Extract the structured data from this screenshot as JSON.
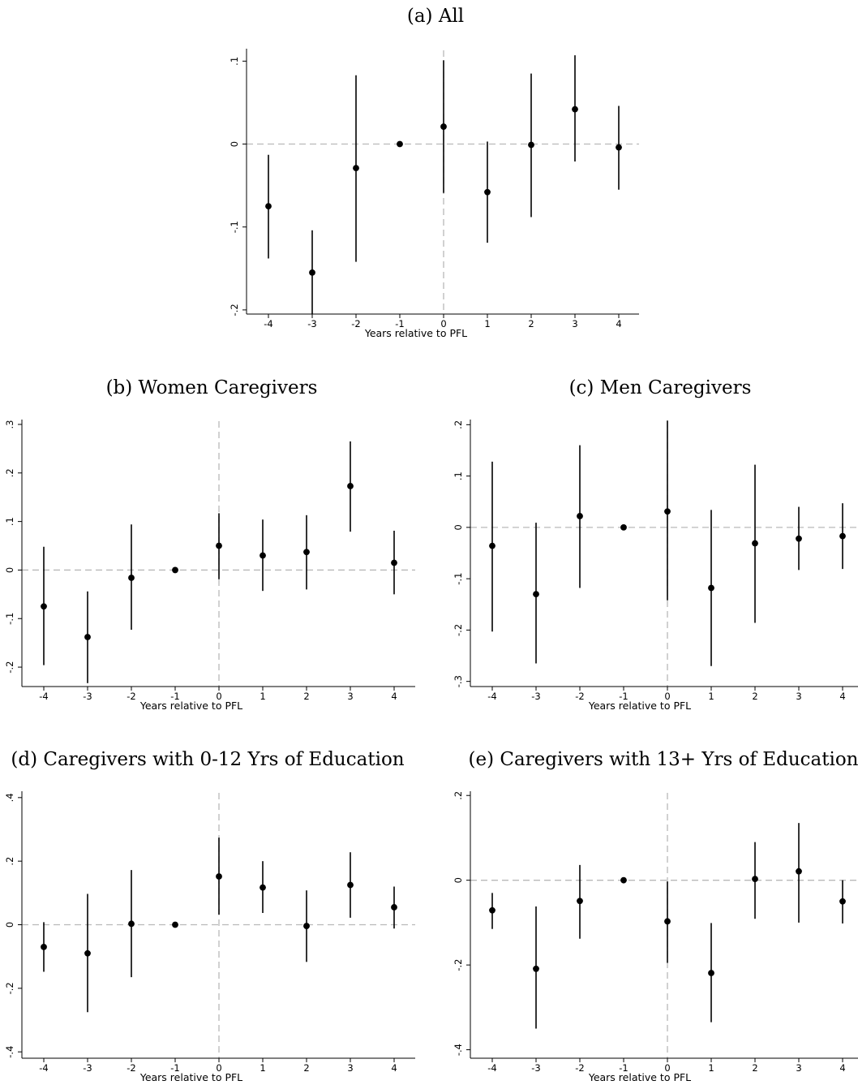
{
  "chart_data": [
    {
      "id": "a",
      "type": "scatter",
      "title": "(a) All",
      "xlabel": "Years relative to PFL",
      "ylabel": "",
      "x": [
        -4,
        -3,
        -2,
        -1,
        0,
        1,
        2,
        3,
        4
      ],
      "xticks": [
        -4,
        -3,
        -2,
        -1,
        0,
        1,
        2,
        3,
        4
      ],
      "xtick_labels": [
        "-4",
        "-3",
        "-2",
        "-1",
        "0",
        "1",
        "2",
        "3",
        "4"
      ],
      "yticks": [
        -0.2,
        -0.1,
        0,
        0.1
      ],
      "ytick_labels": [
        "-.2",
        "-.1",
        "0",
        ".1"
      ],
      "ylim": [
        -0.205,
        0.115
      ],
      "y": [
        -0.075,
        -0.155,
        -0.029,
        0,
        0.021,
        -0.058,
        -0.001,
        0.042,
        -0.004
      ],
      "ci_low": [
        -0.138,
        -0.205,
        -0.142,
        0,
        -0.059,
        -0.119,
        -0.088,
        -0.021,
        -0.055
      ],
      "ci_high": [
        -0.013,
        -0.104,
        0.083,
        0,
        0.101,
        0.003,
        0.085,
        0.107,
        0.046
      ],
      "ref_lines": {
        "y": 0,
        "x": 0
      },
      "grid": false,
      "legend": "none"
    },
    {
      "id": "b",
      "type": "scatter",
      "title": "(b) Women Caregivers",
      "xlabel": "Years relative to PFL",
      "ylabel": "",
      "x": [
        -4,
        -3,
        -2,
        -1,
        0,
        1,
        2,
        3,
        4
      ],
      "xticks": [
        -4,
        -3,
        -2,
        -1,
        0,
        1,
        2,
        3,
        4
      ],
      "xtick_labels": [
        "-4",
        "-3",
        "-2",
        "-1",
        "0",
        "1",
        "2",
        "3",
        "4"
      ],
      "yticks": [
        -0.2,
        -0.1,
        0,
        0.1,
        0.2,
        0.3
      ],
      "ytick_labels": [
        "-.2",
        "-.1",
        "0",
        ".1",
        ".2",
        ".3"
      ],
      "ylim": [
        -0.24,
        0.31
      ],
      "y": [
        -0.075,
        -0.138,
        -0.016,
        0,
        0.05,
        0.03,
        0.037,
        0.173,
        0.015
      ],
      "ci_low": [
        -0.196,
        -0.233,
        -0.123,
        0,
        -0.019,
        -0.043,
        -0.04,
        0.079,
        -0.05
      ],
      "ci_high": [
        0.048,
        -0.044,
        0.094,
        0,
        0.117,
        0.104,
        0.113,
        0.265,
        0.081
      ],
      "ref_lines": {
        "y": 0,
        "x": 0
      },
      "grid": false,
      "legend": "none"
    },
    {
      "id": "c",
      "type": "scatter",
      "title": "(c) Men Caregivers",
      "xlabel": "Years relative to PFL",
      "ylabel": "",
      "x": [
        -4,
        -3,
        -2,
        -1,
        0,
        1,
        2,
        3,
        4
      ],
      "xticks": [
        -4,
        -3,
        -2,
        -1,
        0,
        1,
        2,
        3,
        4
      ],
      "xtick_labels": [
        "-4",
        "-3",
        "-2",
        "-1",
        "0",
        "1",
        "2",
        "3",
        "4"
      ],
      "yticks": [
        -0.3,
        -0.2,
        -0.1,
        0,
        0.1,
        0.2
      ],
      "ytick_labels": [
        "-.3",
        "-.2",
        "-.1",
        "0",
        ".1",
        ".2"
      ],
      "ylim": [
        -0.31,
        0.21
      ],
      "y": [
        -0.036,
        -0.13,
        0.022,
        0,
        0.031,
        -0.118,
        -0.031,
        -0.022,
        -0.017
      ],
      "ci_low": [
        -0.203,
        -0.265,
        -0.118,
        0,
        -0.142,
        -0.27,
        -0.186,
        -0.083,
        -0.081
      ],
      "ci_high": [
        0.128,
        0.009,
        0.16,
        0,
        0.208,
        0.034,
        0.122,
        0.04,
        0.047
      ],
      "ref_lines": {
        "y": 0,
        "x": 0
      },
      "grid": false,
      "legend": "none"
    },
    {
      "id": "d",
      "type": "scatter",
      "title": "(d) Caregivers with 0-12 Yrs of Education",
      "xlabel": "Years relative to PFL",
      "ylabel": "",
      "x": [
        -4,
        -3,
        -2,
        -1,
        0,
        1,
        2,
        3,
        4
      ],
      "xticks": [
        -4,
        -3,
        -2,
        -1,
        0,
        1,
        2,
        3,
        4
      ],
      "xtick_labels": [
        "-4",
        "-3",
        "-2",
        "-1",
        "0",
        "1",
        "2",
        "3",
        "4"
      ],
      "yticks": [
        -0.4,
        -0.2,
        0,
        0.2,
        0.4
      ],
      "ytick_labels": [
        "-.4",
        "-.2",
        "0",
        ".2",
        ".4"
      ],
      "ylim": [
        -0.42,
        0.42
      ],
      "y": [
        -0.07,
        -0.09,
        0.003,
        0,
        0.152,
        0.117,
        -0.004,
        0.125,
        0.055
      ],
      "ci_low": [
        -0.148,
        -0.275,
        -0.165,
        0,
        0.032,
        0.037,
        -0.117,
        0.022,
        -0.012
      ],
      "ci_high": [
        0.008,
        0.097,
        0.172,
        0,
        0.274,
        0.2,
        0.108,
        0.228,
        0.12
      ],
      "ref_lines": {
        "y": 0,
        "x": 0
      },
      "grid": false,
      "legend": "none"
    },
    {
      "id": "e",
      "type": "scatter",
      "title": "(e) Caregivers with 13+ Yrs of Education",
      "xlabel": "Years relative to PFL",
      "ylabel": "",
      "x": [
        -4,
        -3,
        -2,
        -1,
        0,
        1,
        2,
        3,
        4
      ],
      "xticks": [
        -4,
        -3,
        -2,
        -1,
        0,
        1,
        2,
        3,
        4
      ],
      "xtick_labels": [
        "-4",
        "-3",
        "-2",
        "-1",
        "0",
        "1",
        "2",
        "3",
        "4"
      ],
      "yticks": [
        -0.4,
        -0.2,
        0,
        0.2
      ],
      "ytick_labels": [
        "-.4",
        "-.2",
        "0",
        ".2"
      ],
      "ylim": [
        -0.42,
        0.21
      ],
      "y": [
        -0.071,
        -0.209,
        -0.049,
        0,
        -0.097,
        -0.219,
        0.003,
        0.021,
        -0.05
      ],
      "ci_low": [
        -0.115,
        -0.35,
        -0.138,
        0,
        -0.195,
        -0.335,
        -0.091,
        -0.1,
        -0.102
      ],
      "ci_high": [
        -0.03,
        -0.062,
        0.036,
        0,
        -0.003,
        -0.101,
        0.09,
        0.135,
        0
      ],
      "ref_lines": {
        "y": 0,
        "x": 0
      },
      "grid": false,
      "legend": "none"
    }
  ]
}
